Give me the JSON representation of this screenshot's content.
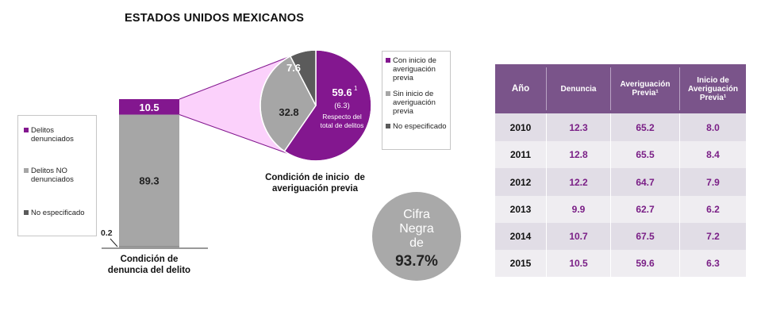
{
  "title": "ESTADOS UNIDOS MEXICANOS",
  "colors": {
    "purple": "#83178f",
    "gray": "#a6a6a6",
    "darkgray": "#5b5b5b",
    "pink": "#fbd1fb",
    "header": "#7a548a"
  },
  "legend_left": {
    "items": [
      {
        "label_l1": "Delitos",
        "label_l2": "denunciados",
        "color": "#83178f"
      },
      {
        "label_l1": "Delitos NO",
        "label_l2": "denunciados",
        "color": "#a6a6a6"
      },
      {
        "label_l1": "No especificado",
        "label_l2": "",
        "color": "#5b5b5b"
      }
    ]
  },
  "legend_right": {
    "items": [
      {
        "l1": "Con inicio de",
        "l2": "averiguación",
        "l3": "previa",
        "color": "#83178f"
      },
      {
        "l1": "Sin inicio de",
        "l2": "averiguación",
        "l3": "previa",
        "color": "#a6a6a6"
      },
      {
        "l1": "No especificado",
        "l2": "",
        "l3": "",
        "color": "#5b5b5b"
      }
    ]
  },
  "chart_data": [
    {
      "type": "bar",
      "title": "Condición de denuncia del delito",
      "caption_l1": "Condición de",
      "caption_l2": "denuncia del delito",
      "stack": [
        {
          "name": "Delitos denunciados",
          "value": 10.5,
          "label": "10.5"
        },
        {
          "name": "Delitos NO denunciados",
          "value": 89.3,
          "label": "89.3"
        },
        {
          "name": "No especificado",
          "value": 0.2,
          "label": "0.2"
        }
      ],
      "ylim": [
        0,
        100
      ]
    },
    {
      "type": "pie",
      "title": "Condición de inicio de averiguación previa",
      "caption_l1": "Condición de inicio  de",
      "caption_l2": "averiguación previa",
      "slices": [
        {
          "name": "Con inicio de averiguación previa",
          "value": 59.6,
          "label": "59.6",
          "sup": "1"
        },
        {
          "name": "Sin inicio de averiguación previa",
          "value": 32.8,
          "label": "32.8"
        },
        {
          "name": "No especificado",
          "value": 7.6,
          "label": "7.6"
        }
      ],
      "note_value": "(6.3)",
      "note_l1": "Respecto del",
      "note_l2": "total de delitos"
    },
    {
      "type": "table",
      "headers": {
        "anio": "Año",
        "denuncia": "Denuncia",
        "av_l1": "Averiguación",
        "av_l2": "Previa¹",
        "inicio_l1": "Inicio de",
        "inicio_l2": "Averiguación",
        "inicio_l3": "Previa¹"
      },
      "rows": [
        {
          "year": "2010",
          "denuncia": "12.3",
          "averiguacion": "65.2",
          "inicio": "8.0"
        },
        {
          "year": "2011",
          "denuncia": "12.8",
          "averiguacion": "65.5",
          "inicio": "8.4"
        },
        {
          "year": "2012",
          "denuncia": "12.2",
          "averiguacion": "64.7",
          "inicio": "7.9"
        },
        {
          "year": "2013",
          "denuncia": "9.9",
          "averiguacion": "62.7",
          "inicio": "6.2"
        },
        {
          "year": "2014",
          "denuncia": "10.7",
          "averiguacion": "67.5",
          "inicio": "7.2"
        },
        {
          "year": "2015",
          "denuncia": "10.5",
          "averiguacion": "59.6",
          "inicio": "6.3"
        }
      ]
    }
  ],
  "cifra_negra": {
    "l1": "Cifra",
    "l2": "Negra",
    "l3": "de",
    "value": "93.7%"
  }
}
